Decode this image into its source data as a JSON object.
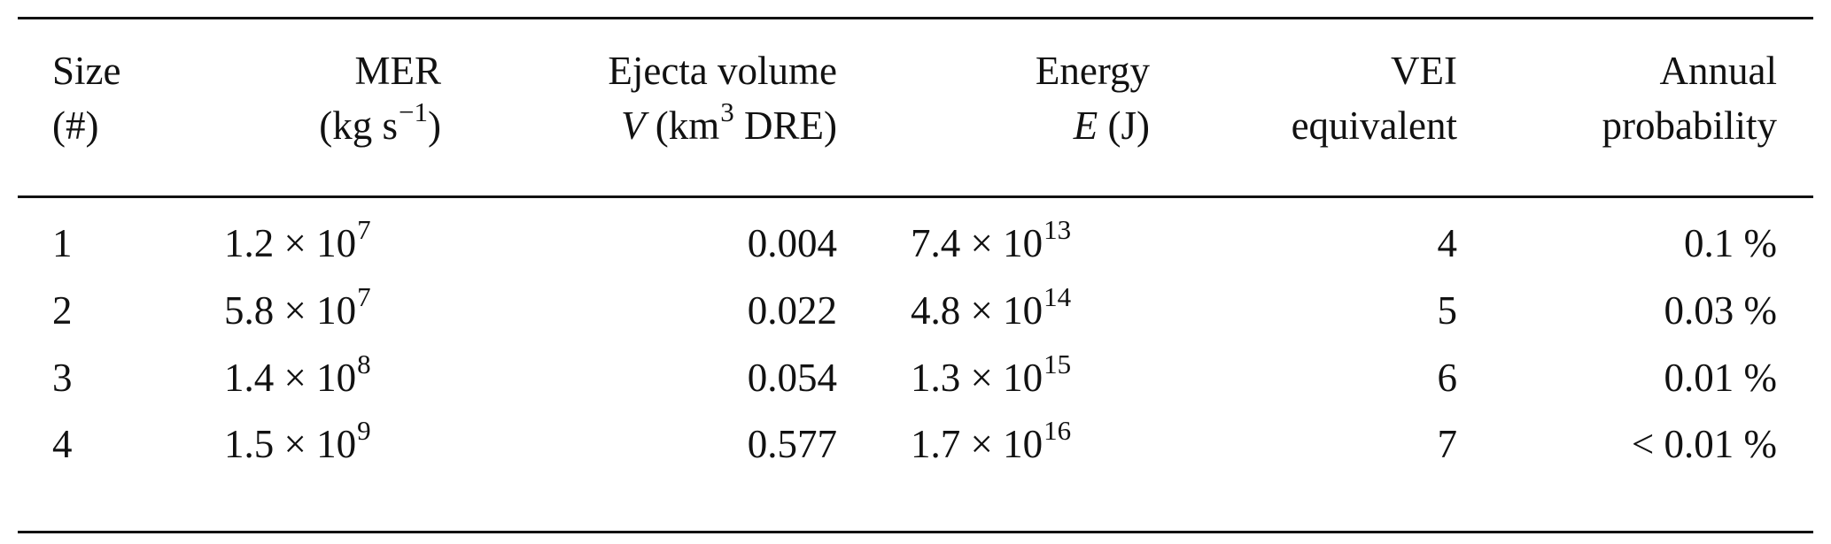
{
  "headers": [
    {
      "line1": "Size",
      "line2": "(#)"
    },
    {
      "line1": "MER",
      "line2_unit": "(kg s",
      "line2_exp": "−1",
      "line2_close": ")"
    },
    {
      "line1": "Ejecta volume",
      "line2_sym": "V",
      "line2_unit": " (km",
      "line2_exp": "3",
      "line2_close": " DRE)"
    },
    {
      "line1": "Energy",
      "line2_sym": "E",
      "line2_close": " (J)"
    },
    {
      "line1": "VEI",
      "line2": "equivalent"
    },
    {
      "line1": "Annual",
      "line2": "probability"
    }
  ],
  "rows": [
    {
      "size": "1",
      "mer": "1.2 × 10",
      "mer_exp": "7",
      "volume": "0.004",
      "energy": "7.4 × 10",
      "energy_exp": "13",
      "vei": "4",
      "prob": "0.1 %"
    },
    {
      "size": "2",
      "mer": "5.8 × 10",
      "mer_exp": "7",
      "volume": "0.022",
      "energy": "4.8 × 10",
      "energy_exp": "14",
      "vei": "5",
      "prob": "0.03 %"
    },
    {
      "size": "3",
      "mer": "1.4 × 10",
      "mer_exp": "8",
      "volume": "0.054",
      "energy": "1.3 × 10",
      "energy_exp": "15",
      "vei": "6",
      "prob": "0.01 %"
    },
    {
      "size": "4",
      "mer": "1.5 × 10",
      "mer_exp": "9",
      "volume": "0.577",
      "energy": "1.7 × 10",
      "energy_exp": "16",
      "vei": "7",
      "prob": "< 0.01 %"
    }
  ]
}
